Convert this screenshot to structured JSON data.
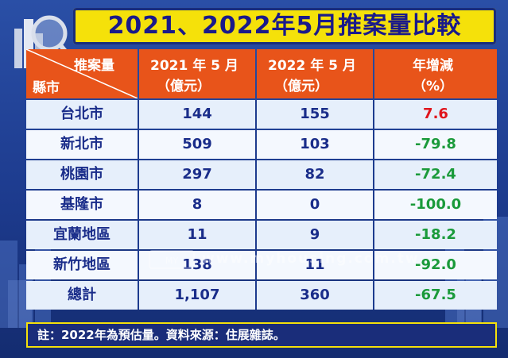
{
  "title": "2021、2022年5月推案量比較",
  "header": {
    "corner_top": "推案量",
    "corner_bottom": "縣市",
    "col1_line1": "2021 年 5 月",
    "col1_line2": "（億元）",
    "col2_line1": "2022 年 5 月",
    "col2_line2": "（億元）",
    "col3_line1": "年增減",
    "col3_line2": "（%）"
  },
  "rows": [
    {
      "name": "台北市",
      "y2021": "144",
      "y2022": "155",
      "pct": "7.6"
    },
    {
      "name": "新北市",
      "y2021": "509",
      "y2022": "103",
      "pct": "-79.8"
    },
    {
      "name": "桃園市",
      "y2021": "297",
      "y2022": "82",
      "pct": "-72.4"
    },
    {
      "name": "基隆市",
      "y2021": "8",
      "y2022": "0",
      "pct": "-100.0"
    },
    {
      "name": "宜蘭地區",
      "y2021": "11",
      "y2022": "9",
      "pct": "-18.2"
    },
    {
      "name": "新竹地區",
      "y2021": "138",
      "y2022": "11",
      "pct": "-92.0"
    },
    {
      "name": "總計",
      "y2021": "1,107",
      "y2022": "360",
      "pct": "-67.5"
    }
  ],
  "footnote": "註：2022年為預估量。資料來源：住展雜誌。",
  "watermark": "www.myhousing.com.tw",
  "colors": {
    "header_bg": "#e8541a",
    "title_bg": "#f5e10a",
    "positive": "#e0141c",
    "negative": "#1a9a3a",
    "text": "#1a2d8a"
  },
  "chart_data": {
    "type": "table",
    "title": "2021、2022年5月推案量比較",
    "columns": [
      "縣市",
      "2021 年 5 月（億元）",
      "2022 年 5 月（億元）",
      "年增減（%）"
    ],
    "categories": [
      "台北市",
      "新北市",
      "桃園市",
      "基隆市",
      "宜蘭地區",
      "新竹地區",
      "總計"
    ],
    "series": [
      {
        "name": "2021 年 5 月（億元）",
        "values": [
          144,
          509,
          297,
          8,
          11,
          138,
          1107
        ]
      },
      {
        "name": "2022 年 5 月（億元）",
        "values": [
          155,
          103,
          82,
          0,
          9,
          11,
          360
        ]
      },
      {
        "name": "年增減（%）",
        "values": [
          7.6,
          -79.8,
          -72.4,
          -100.0,
          -18.2,
          -92.0,
          -67.5
        ]
      }
    ]
  }
}
